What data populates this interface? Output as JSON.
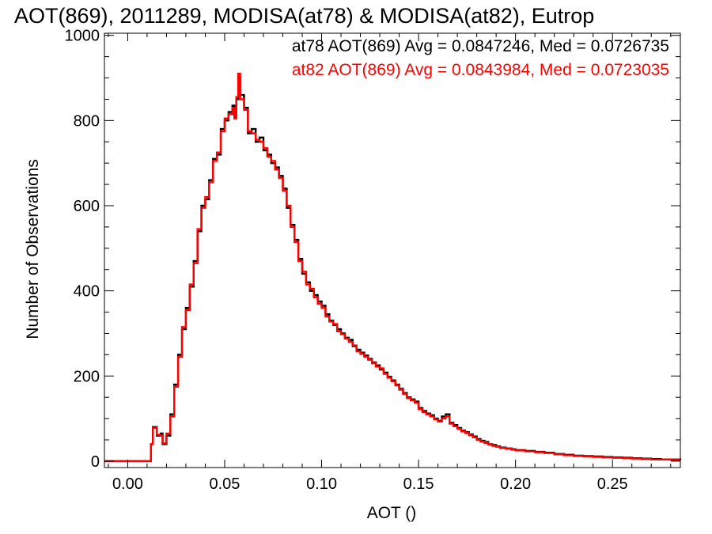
{
  "chart_data": {
    "type": "line",
    "title": "AOT(869), 2011289, MODISA(at78) & MODISA(at82), Eutrop",
    "xlabel": "AOT ()",
    "ylabel": "Number of Observations",
    "xlim": [
      -0.012,
      0.285
    ],
    "ylim": [
      -15,
      1005
    ],
    "x_ticks": [
      0.0,
      0.05,
      0.1,
      0.15,
      0.2,
      0.25
    ],
    "x_tick_labels": [
      "0.00",
      "0.05",
      "0.10",
      "0.15",
      "0.20",
      "0.25"
    ],
    "y_ticks": [
      0,
      200,
      400,
      600,
      800,
      1000
    ],
    "y_tick_labels": [
      "0",
      "200",
      "400",
      "600",
      "800",
      "1000"
    ],
    "grid": false,
    "annotations": [
      {
        "text": "at78 AOT(869) Avg = 0.0847246, Med = 0.0726735",
        "color": "#000000"
      },
      {
        "text": "at82 AOT(869) Avg = 0.0843984, Med = 0.0723035",
        "color": "#ff0000"
      }
    ],
    "series": [
      {
        "color": "#000000",
        "points": [
          [
            -0.012,
            0
          ],
          [
            0.011,
            0
          ],
          [
            0.012,
            40
          ],
          [
            0.013,
            80
          ],
          [
            0.015,
            60
          ],
          [
            0.017,
            65
          ],
          [
            0.018,
            40
          ],
          [
            0.02,
            60
          ],
          [
            0.022,
            110
          ],
          [
            0.024,
            180
          ],
          [
            0.026,
            250
          ],
          [
            0.028,
            310
          ],
          [
            0.03,
            360
          ],
          [
            0.032,
            410
          ],
          [
            0.034,
            470
          ],
          [
            0.036,
            540
          ],
          [
            0.038,
            600
          ],
          [
            0.04,
            615
          ],
          [
            0.042,
            660
          ],
          [
            0.044,
            710
          ],
          [
            0.046,
            720
          ],
          [
            0.048,
            780
          ],
          [
            0.05,
            800
          ],
          [
            0.052,
            820
          ],
          [
            0.054,
            835
          ],
          [
            0.055,
            810
          ],
          [
            0.056,
            850
          ],
          [
            0.057,
            900
          ],
          [
            0.058,
            860
          ],
          [
            0.06,
            830
          ],
          [
            0.062,
            770
          ],
          [
            0.064,
            780
          ],
          [
            0.066,
            750
          ],
          [
            0.068,
            760
          ],
          [
            0.07,
            730
          ],
          [
            0.072,
            720
          ],
          [
            0.074,
            700
          ],
          [
            0.076,
            690
          ],
          [
            0.078,
            670
          ],
          [
            0.08,
            640
          ],
          [
            0.082,
            595
          ],
          [
            0.084,
            555
          ],
          [
            0.086,
            520
          ],
          [
            0.088,
            475
          ],
          [
            0.09,
            440
          ],
          [
            0.092,
            420
          ],
          [
            0.094,
            400
          ],
          [
            0.096,
            390
          ],
          [
            0.098,
            375
          ],
          [
            0.1,
            365
          ],
          [
            0.102,
            345
          ],
          [
            0.104,
            330
          ],
          [
            0.106,
            320
          ],
          [
            0.108,
            310
          ],
          [
            0.11,
            300
          ],
          [
            0.112,
            290
          ],
          [
            0.114,
            285
          ],
          [
            0.116,
            270
          ],
          [
            0.118,
            262
          ],
          [
            0.12,
            255
          ],
          [
            0.122,
            248
          ],
          [
            0.124,
            240
          ],
          [
            0.126,
            232
          ],
          [
            0.128,
            225
          ],
          [
            0.13,
            215
          ],
          [
            0.132,
            208
          ],
          [
            0.134,
            198
          ],
          [
            0.136,
            190
          ],
          [
            0.138,
            180
          ],
          [
            0.14,
            170
          ],
          [
            0.142,
            160
          ],
          [
            0.144,
            150
          ],
          [
            0.146,
            145
          ],
          [
            0.148,
            140
          ],
          [
            0.15,
            125
          ],
          [
            0.152,
            118
          ],
          [
            0.154,
            112
          ],
          [
            0.156,
            108
          ],
          [
            0.158,
            100
          ],
          [
            0.16,
            95
          ],
          [
            0.162,
            105
          ],
          [
            0.164,
            110
          ],
          [
            0.166,
            90
          ],
          [
            0.168,
            85
          ],
          [
            0.17,
            78
          ],
          [
            0.172,
            72
          ],
          [
            0.174,
            68
          ],
          [
            0.176,
            63
          ],
          [
            0.178,
            58
          ],
          [
            0.18,
            52
          ],
          [
            0.182,
            48
          ],
          [
            0.184,
            45
          ],
          [
            0.186,
            40
          ],
          [
            0.188,
            38
          ],
          [
            0.19,
            35
          ],
          [
            0.192,
            32
          ],
          [
            0.195,
            30
          ],
          [
            0.198,
            28
          ],
          [
            0.2,
            26
          ],
          [
            0.205,
            24
          ],
          [
            0.21,
            22
          ],
          [
            0.215,
            20
          ],
          [
            0.22,
            17
          ],
          [
            0.225,
            15
          ],
          [
            0.23,
            13
          ],
          [
            0.235,
            12
          ],
          [
            0.24,
            11
          ],
          [
            0.245,
            10
          ],
          [
            0.25,
            9
          ],
          [
            0.255,
            8
          ],
          [
            0.26,
            7
          ],
          [
            0.265,
            6
          ],
          [
            0.27,
            5
          ],
          [
            0.275,
            4
          ],
          [
            0.28,
            4
          ],
          [
            0.285,
            3
          ]
        ]
      },
      {
        "color": "#ff0000",
        "points": [
          [
            -0.012,
            0
          ],
          [
            0.011,
            0
          ],
          [
            0.012,
            40
          ],
          [
            0.013,
            78
          ],
          [
            0.015,
            62
          ],
          [
            0.017,
            60
          ],
          [
            0.018,
            42
          ],
          [
            0.02,
            65
          ],
          [
            0.022,
            105
          ],
          [
            0.024,
            175
          ],
          [
            0.026,
            245
          ],
          [
            0.028,
            315
          ],
          [
            0.03,
            355
          ],
          [
            0.032,
            415
          ],
          [
            0.034,
            465
          ],
          [
            0.036,
            545
          ],
          [
            0.038,
            595
          ],
          [
            0.04,
            620
          ],
          [
            0.042,
            655
          ],
          [
            0.044,
            705
          ],
          [
            0.046,
            725
          ],
          [
            0.048,
            775
          ],
          [
            0.05,
            805
          ],
          [
            0.052,
            815
          ],
          [
            0.054,
            830
          ],
          [
            0.055,
            805
          ],
          [
            0.056,
            855
          ],
          [
            0.057,
            910
          ],
          [
            0.058,
            850
          ],
          [
            0.06,
            825
          ],
          [
            0.062,
            775
          ],
          [
            0.064,
            770
          ],
          [
            0.066,
            755
          ],
          [
            0.068,
            750
          ],
          [
            0.07,
            735
          ],
          [
            0.072,
            715
          ],
          [
            0.074,
            705
          ],
          [
            0.076,
            685
          ],
          [
            0.078,
            665
          ],
          [
            0.08,
            635
          ],
          [
            0.082,
            600
          ],
          [
            0.084,
            550
          ],
          [
            0.086,
            515
          ],
          [
            0.088,
            470
          ],
          [
            0.09,
            445
          ],
          [
            0.092,
            415
          ],
          [
            0.094,
            405
          ],
          [
            0.096,
            385
          ],
          [
            0.098,
            370
          ],
          [
            0.1,
            360
          ],
          [
            0.102,
            340
          ],
          [
            0.104,
            328
          ],
          [
            0.106,
            322
          ],
          [
            0.108,
            305
          ],
          [
            0.11,
            298
          ],
          [
            0.112,
            288
          ],
          [
            0.114,
            280
          ],
          [
            0.116,
            272
          ],
          [
            0.118,
            258
          ],
          [
            0.12,
            252
          ],
          [
            0.122,
            245
          ],
          [
            0.124,
            238
          ],
          [
            0.126,
            230
          ],
          [
            0.128,
            222
          ],
          [
            0.13,
            218
          ],
          [
            0.132,
            205
          ],
          [
            0.134,
            196
          ],
          [
            0.136,
            188
          ],
          [
            0.138,
            178
          ],
          [
            0.14,
            168
          ],
          [
            0.142,
            158
          ],
          [
            0.144,
            148
          ],
          [
            0.146,
            143
          ],
          [
            0.148,
            137
          ],
          [
            0.15,
            122
          ],
          [
            0.152,
            115
          ],
          [
            0.154,
            110
          ],
          [
            0.156,
            105
          ],
          [
            0.158,
            98
          ],
          [
            0.16,
            93
          ],
          [
            0.162,
            100
          ],
          [
            0.164,
            105
          ],
          [
            0.166,
            88
          ],
          [
            0.168,
            82
          ],
          [
            0.17,
            76
          ],
          [
            0.172,
            70
          ],
          [
            0.174,
            66
          ],
          [
            0.176,
            61
          ],
          [
            0.178,
            56
          ],
          [
            0.18,
            50
          ],
          [
            0.182,
            46
          ],
          [
            0.184,
            43
          ],
          [
            0.186,
            39
          ],
          [
            0.188,
            36
          ],
          [
            0.19,
            34
          ],
          [
            0.192,
            31
          ],
          [
            0.195,
            29
          ],
          [
            0.198,
            27
          ],
          [
            0.2,
            25
          ],
          [
            0.205,
            23
          ],
          [
            0.21,
            21
          ],
          [
            0.215,
            19
          ],
          [
            0.22,
            16
          ],
          [
            0.225,
            14
          ],
          [
            0.23,
            12
          ],
          [
            0.235,
            11
          ],
          [
            0.24,
            10
          ],
          [
            0.245,
            9
          ],
          [
            0.25,
            8
          ],
          [
            0.255,
            7
          ],
          [
            0.26,
            6
          ],
          [
            0.265,
            5
          ],
          [
            0.27,
            4
          ],
          [
            0.275,
            4
          ],
          [
            0.28,
            3
          ],
          [
            0.285,
            3
          ]
        ]
      }
    ]
  }
}
